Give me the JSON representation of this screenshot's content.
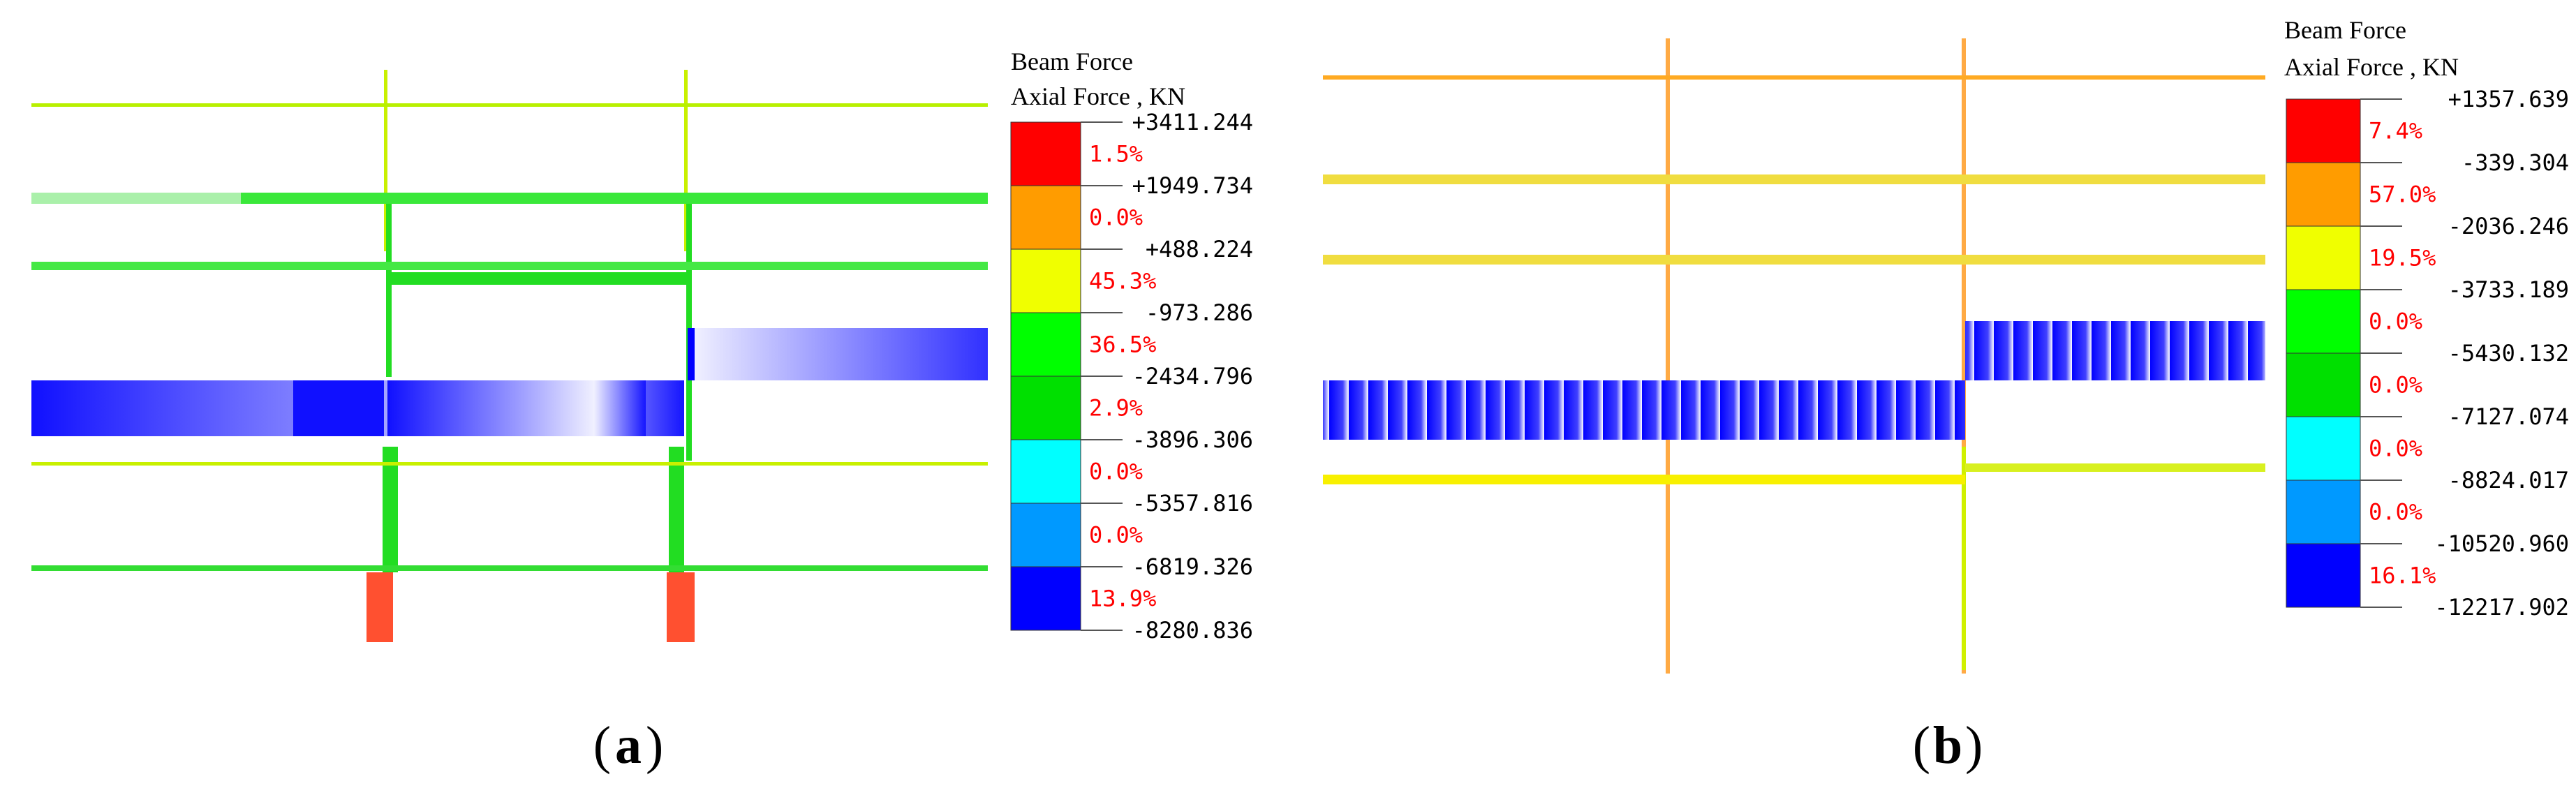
{
  "panels": [
    {
      "id": "a",
      "caption_letter": "a",
      "legend": {
        "title_line1": "Beam Force",
        "title_line2": "Axial Force , KN",
        "values": [
          "+3411.244",
          "+1949.734",
          "+488.224",
          "-973.286",
          "-2434.796",
          "-3896.306",
          "-5357.816",
          "-6819.326",
          "-8280.836"
        ],
        "percents": [
          "1.5%",
          "0.0%",
          "45.3%",
          "36.5%",
          "2.9%",
          "0.0%",
          "0.0%",
          "13.9%"
        ],
        "colors": [
          "#ff0000",
          "#ff9c00",
          "#f0ff00",
          "#00ff00",
          "#00e000",
          "#00ffff",
          "#0099ff",
          "#0000ff"
        ]
      }
    },
    {
      "id": "b",
      "caption_letter": "b",
      "legend": {
        "title_line1": "Beam Force",
        "title_line2": "Axial Force , KN",
        "values": [
          "+1357.639",
          "-339.304",
          "-2036.246",
          "-3733.189",
          "-5430.132",
          "-7127.074",
          "-8824.017",
          "-10520.960",
          "-12217.902"
        ],
        "percents": [
          "7.4%",
          "57.0%",
          "19.5%",
          "0.0%",
          "0.0%",
          "0.0%",
          "0.0%",
          "16.1%"
        ],
        "colors": [
          "#ff0000",
          "#ff9c00",
          "#f0ff00",
          "#00ff00",
          "#00e000",
          "#00ffff",
          "#0099ff",
          "#0000ff"
        ]
      }
    }
  ]
}
